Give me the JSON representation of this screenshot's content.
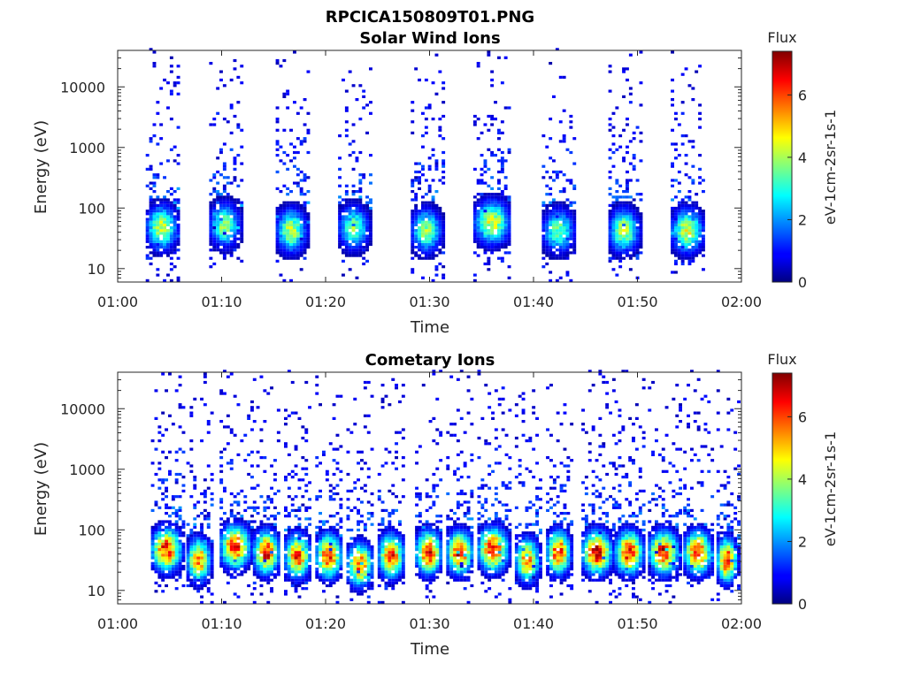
{
  "figure_title": "RPCICA150809T01.PNG",
  "chart_data": [
    {
      "type": "heatmap",
      "title": "Solar Wind Ions",
      "xlabel": "Time",
      "ylabel": "Energy (eV)",
      "x_ticks": [
        "01:00",
        "01:10",
        "01:20",
        "01:30",
        "01:40",
        "01:50",
        "02:00"
      ],
      "xlim_minutes": [
        0,
        60
      ],
      "y_scale": "log",
      "ylim": [
        6,
        40000
      ],
      "y_ticks": [
        10,
        100,
        1000,
        10000
      ],
      "colorbar": {
        "title": "Flux",
        "label": "eV-1cm-2sr-1s-1",
        "range": [
          0,
          7.4
        ],
        "ticks": [
          0,
          2,
          4,
          6
        ],
        "colormap": "jet"
      },
      "bursts": [
        {
          "start": 2.7,
          "end": 5.8,
          "peak_energy": 45,
          "peak_flux": 4.8
        },
        {
          "start": 8.8,
          "end": 11.8,
          "peak_energy": 50,
          "peak_flux": 4.2
        },
        {
          "start": 15.2,
          "end": 18.2,
          "peak_energy": 40,
          "peak_flux": 4.6
        },
        {
          "start": 21.2,
          "end": 24.2,
          "peak_energy": 45,
          "peak_flux": 4.0
        },
        {
          "start": 28.2,
          "end": 31.2,
          "peak_energy": 40,
          "peak_flux": 4.3
        },
        {
          "start": 34.2,
          "end": 37.8,
          "peak_energy": 55,
          "peak_flux": 4.9
        },
        {
          "start": 40.8,
          "end": 44.0,
          "peak_energy": 40,
          "peak_flux": 3.9
        },
        {
          "start": 47.2,
          "end": 50.2,
          "peak_energy": 40,
          "peak_flux": 4.6
        },
        {
          "start": 53.2,
          "end": 56.4,
          "peak_energy": 40,
          "peak_flux": 4.8
        }
      ]
    },
    {
      "type": "heatmap",
      "title": "Cometary Ions",
      "xlabel": "Time",
      "ylabel": "Energy (eV)",
      "x_ticks": [
        "01:00",
        "01:10",
        "01:20",
        "01:30",
        "01:40",
        "01:50",
        "02:00"
      ],
      "xlim_minutes": [
        0,
        60
      ],
      "y_scale": "log",
      "ylim": [
        6,
        40000
      ],
      "y_ticks": [
        10,
        100,
        1000,
        10000
      ],
      "colorbar": {
        "title": "Flux",
        "label": "eV-1cm-2sr-1s-1",
        "range": [
          0,
          7.4
        ],
        "ticks": [
          0,
          2,
          4,
          6
        ],
        "colormap": "jet"
      },
      "bursts": [
        {
          "start": 3.2,
          "end": 6.2,
          "peak_energy": 45,
          "peak_flux": 7.0
        },
        {
          "start": 6.6,
          "end": 9.0,
          "peak_energy": 30,
          "peak_flux": 6.2
        },
        {
          "start": 9.8,
          "end": 12.8,
          "peak_energy": 50,
          "peak_flux": 6.8
        },
        {
          "start": 13.0,
          "end": 15.6,
          "peak_energy": 40,
          "peak_flux": 7.0
        },
        {
          "start": 16.0,
          "end": 18.6,
          "peak_energy": 35,
          "peak_flux": 6.6
        },
        {
          "start": 19.0,
          "end": 21.6,
          "peak_energy": 35,
          "peak_flux": 7.0
        },
        {
          "start": 22.0,
          "end": 24.6,
          "peak_energy": 25,
          "peak_flux": 6.4
        },
        {
          "start": 25.0,
          "end": 27.6,
          "peak_energy": 35,
          "peak_flux": 6.6
        },
        {
          "start": 28.6,
          "end": 31.2,
          "peak_energy": 40,
          "peak_flux": 7.0
        },
        {
          "start": 31.6,
          "end": 34.2,
          "peak_energy": 40,
          "peak_flux": 7.0
        },
        {
          "start": 34.6,
          "end": 37.6,
          "peak_energy": 45,
          "peak_flux": 7.2
        },
        {
          "start": 38.2,
          "end": 40.6,
          "peak_energy": 30,
          "peak_flux": 6.2
        },
        {
          "start": 41.2,
          "end": 43.6,
          "peak_energy": 40,
          "peak_flux": 7.0
        },
        {
          "start": 44.6,
          "end": 47.6,
          "peak_energy": 40,
          "peak_flux": 7.2
        },
        {
          "start": 47.8,
          "end": 50.6,
          "peak_energy": 40,
          "peak_flux": 7.0
        },
        {
          "start": 51.0,
          "end": 54.0,
          "peak_energy": 40,
          "peak_flux": 7.0
        },
        {
          "start": 54.4,
          "end": 57.2,
          "peak_energy": 40,
          "peak_flux": 7.0
        },
        {
          "start": 57.6,
          "end": 59.6,
          "peak_energy": 30,
          "peak_flux": 7.2
        }
      ]
    }
  ]
}
